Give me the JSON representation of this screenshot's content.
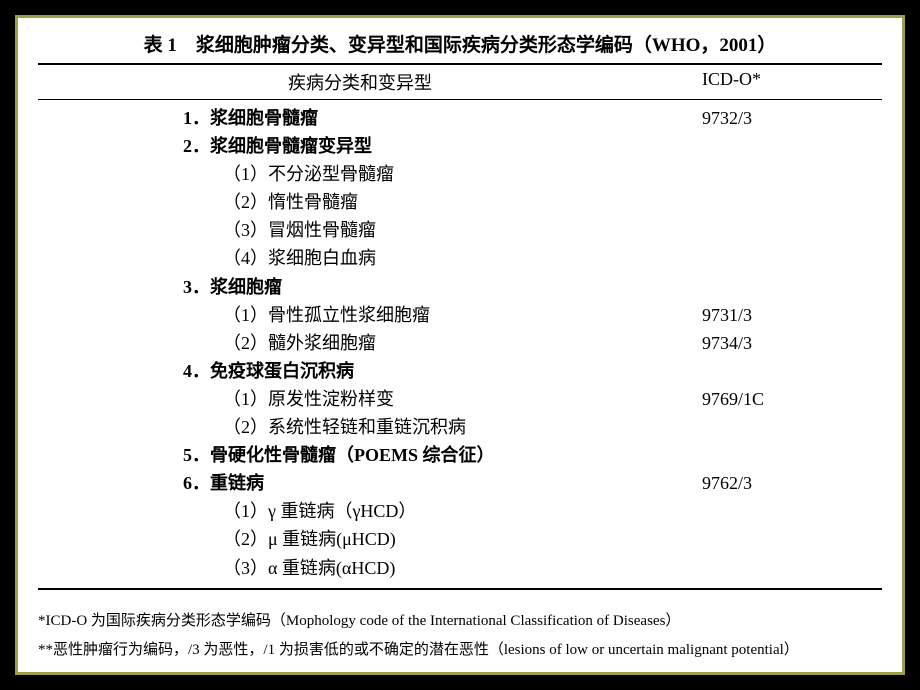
{
  "table": {
    "title": "表 1　浆细胞肿瘤分类、变异型和国际疾病分类形态学编码（WHO，2001）",
    "header": {
      "col1": "疾病分类和变异型",
      "col2": "ICD-O*"
    },
    "rows": [
      {
        "col1": "1．浆细胞骨髓瘤",
        "col2": "9732/3",
        "bold": true,
        "sub": false
      },
      {
        "col1": "2．浆细胞骨髓瘤变异型",
        "col2": "",
        "bold": true,
        "sub": false
      },
      {
        "col1": "（1）不分泌型骨髓瘤",
        "col2": "",
        "bold": false,
        "sub": true
      },
      {
        "col1": "（2）惰性骨髓瘤",
        "col2": "",
        "bold": false,
        "sub": true
      },
      {
        "col1": "（3）冒烟性骨髓瘤",
        "col2": "",
        "bold": false,
        "sub": true
      },
      {
        "col1": "（4）浆细胞白血病",
        "col2": "",
        "bold": false,
        "sub": true
      },
      {
        "col1": "3．浆细胞瘤",
        "col2": "",
        "bold": true,
        "sub": false
      },
      {
        "col1": "（1）骨性孤立性浆细胞瘤",
        "col2": "9731/3",
        "bold": false,
        "sub": true
      },
      {
        "col1": "（2）髓外浆细胞瘤",
        "col2": "9734/3",
        "bold": false,
        "sub": true
      },
      {
        "col1": "4．免疫球蛋白沉积病",
        "col2": "",
        "bold": true,
        "sub": false
      },
      {
        "col1": "（1）原发性淀粉样变",
        "col2": "9769/1C",
        "bold": false,
        "sub": true
      },
      {
        "col1": "（2）系统性轻链和重链沉积病",
        "col2": "",
        "bold": false,
        "sub": true
      },
      {
        "col1": "5．骨硬化性骨髓瘤（POEMS 综合征）",
        "col2": "",
        "bold": true,
        "sub": false
      },
      {
        "col1": "6．重链病",
        "col2": "9762/3",
        "bold": true,
        "sub": false
      },
      {
        "col1": "（1）γ 重链病（γHCD）",
        "col2": "",
        "bold": false,
        "sub": true
      },
      {
        "col1": "（2）μ 重链病(μHCD)",
        "col2": "",
        "bold": false,
        "sub": true
      },
      {
        "col1": "（3）α 重链病(αHCD)",
        "col2": "",
        "bold": false,
        "sub": true
      }
    ]
  },
  "disclaimers": {
    "line1": "*ICD-O 为国际疾病分类形态学编码（Mophology code of the International Classification of Diseases）",
    "line2": "**恶性肿瘤行为编码，/3 为恶性，/1 为损害低的或不确定的潜在恶性（lesions of low or uncertain malignant potential）"
  },
  "colors": {
    "background": "#000000",
    "slide_bg": "#ffffff",
    "border": "#9ca04a",
    "text": "#000000"
  }
}
